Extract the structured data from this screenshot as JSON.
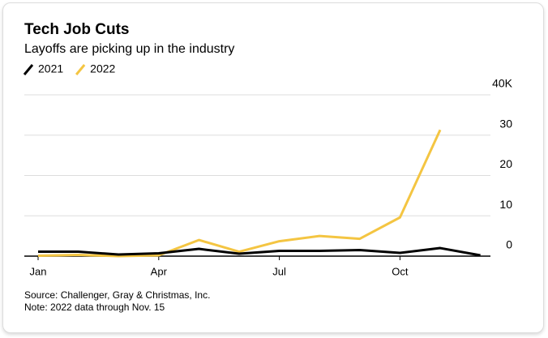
{
  "chart_data": {
    "type": "line",
    "title": "Tech Job Cuts",
    "subtitle": "Layoffs are picking up in the industry",
    "categories": [
      "Jan",
      null,
      null,
      "Apr",
      null,
      null,
      "Jul",
      null,
      null,
      "Oct",
      null,
      null
    ],
    "series": [
      {
        "name": "2021",
        "color": "#000000",
        "values": [
          1.1,
          1.1,
          0.4,
          0.7,
          1.8,
          0.6,
          1.3,
          1.3,
          1.5,
          0.8,
          2.0,
          0.2
        ]
      },
      {
        "name": "2022",
        "color": "#f4c542",
        "values": [
          0.1,
          0.3,
          0.0,
          0.2,
          4.0,
          1.1,
          3.7,
          5.0,
          4.3,
          9.6,
          31.3,
          null
        ]
      }
    ],
    "ylim": [
      0,
      40
    ],
    "yticks": [
      0,
      10,
      20,
      30,
      {
        "value": 40,
        "label": "40K"
      }
    ],
    "grid": true,
    "source": "Source: Challenger, Gray & Christmas, Inc.",
    "note": "Note: 2022 data through Nov. 15"
  }
}
